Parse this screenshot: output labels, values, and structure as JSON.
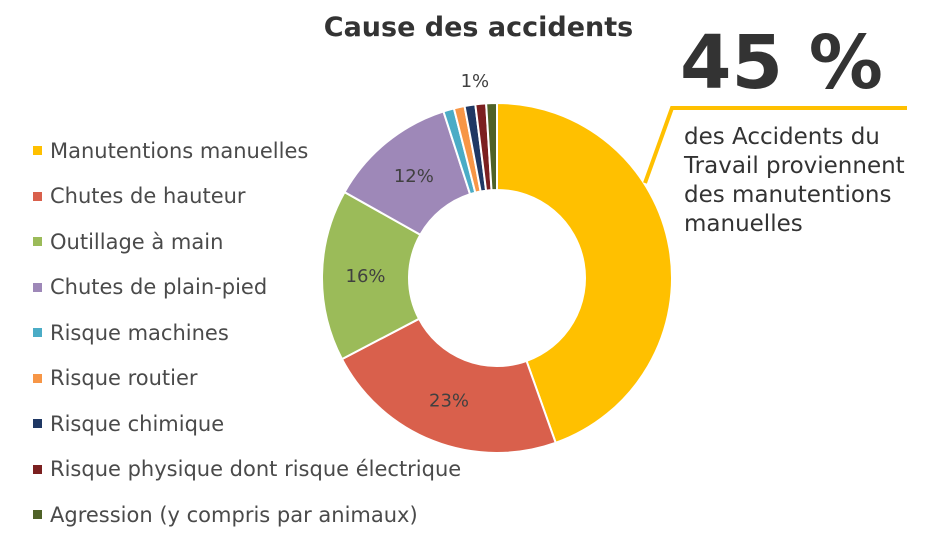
{
  "chart_data": {
    "type": "pie",
    "title": "Cause des accidents",
    "categories": [
      "Manutentions manuelles",
      "Chutes de hauteur",
      "Outillage à main",
      "Chutes de plain-pied",
      "Risque machines",
      "Risque routier",
      "Risque chimique",
      "Risque physique dont risque électrique",
      "Agression (y compris par animaux)"
    ],
    "values": [
      45,
      23,
      16,
      12,
      1,
      1,
      1,
      1,
      1
    ],
    "data_labels": [
      "",
      "23%",
      "16%",
      "12%",
      "",
      "",
      "",
      "",
      "1%"
    ],
    "colors": [
      "#FFC000",
      "#D9604C",
      "#9BBB59",
      "#9E88B8",
      "#4BACC6",
      "#F79646",
      "#1F3864",
      "#7B2020",
      "#4F6228"
    ],
    "donut": true,
    "legend_position": "left"
  },
  "callout": {
    "value": "45 %",
    "text": "des Accidents du Travail proviennent des manutentions manuelles",
    "accent_color": "#FFC000"
  }
}
